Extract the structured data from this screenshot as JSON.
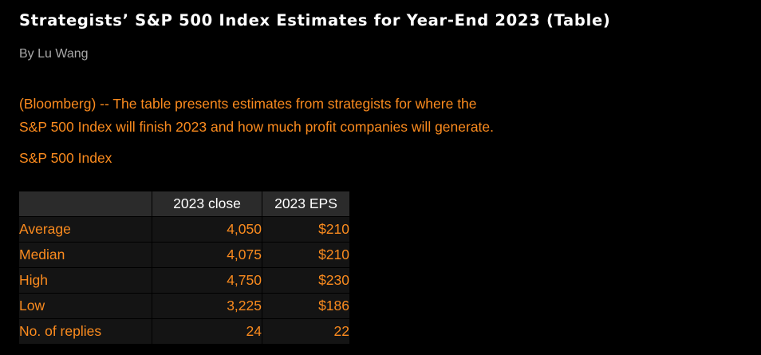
{
  "article": {
    "headline": "Strategists’ S&P 500 Index Estimates for Year-End 2023 (Table)",
    "byline": "By Lu Wang",
    "body_line_1": "(Bloomberg) -- The table presents estimates from strategists for where the",
    "body_line_2": "S&P 500 Index will finish 2023 and how much profit companies will generate.",
    "table_caption": "S&P 500 Index"
  },
  "table": {
    "headers": [
      "",
      "2023 close",
      "2023 EPS"
    ],
    "rows": [
      {
        "label": "Average",
        "close": "4,050",
        "eps": "$210"
      },
      {
        "label": "Median",
        "close": "4,075",
        "eps": "$210"
      },
      {
        "label": "High",
        "close": "4,750",
        "eps": "$230"
      },
      {
        "label": "Low",
        "close": "3,225",
        "eps": "$186"
      },
      {
        "label": "No. of replies",
        "close": "24",
        "eps": "22"
      }
    ]
  },
  "colors": {
    "background": "#000000",
    "headline": "#ffffff",
    "byline": "#a8a8a8",
    "accent_orange": "#fb8b1e",
    "table_header_bg": "#2b2b2b",
    "table_cell_bg": "#141414"
  }
}
